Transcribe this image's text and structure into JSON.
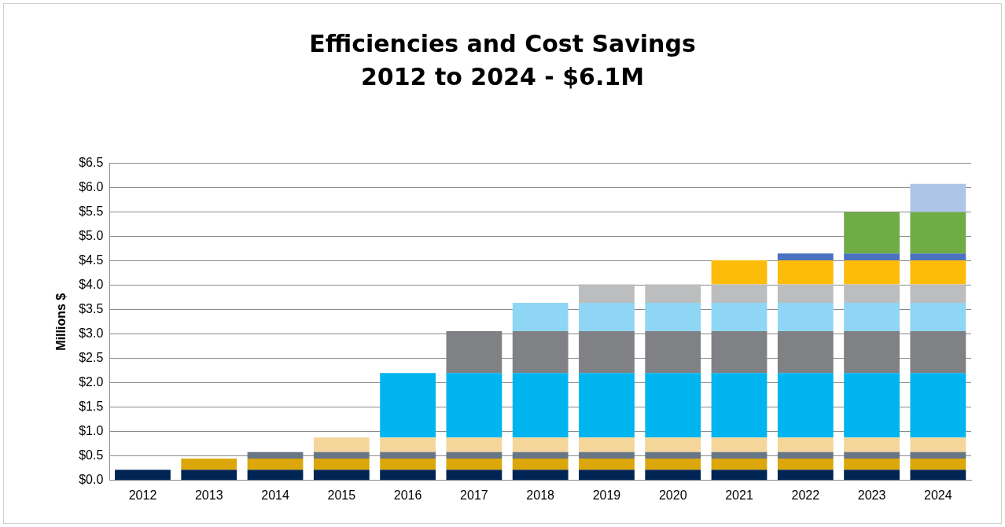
{
  "chart_data": {
    "type": "bar",
    "title": "Efficiencies and Cost Savings\n2012 to 2024 - $6.1M",
    "ylabel": "Millions $",
    "stacked": true,
    "grid": "y",
    "legend": false,
    "categories": [
      "2012",
      "2013",
      "2014",
      "2015",
      "2016",
      "2017",
      "2018",
      "2019",
      "2020",
      "2021",
      "2022",
      "2023",
      "2024"
    ],
    "ylim": [
      0,
      6.5
    ],
    "yticks": [
      {
        "value": 0,
        "label": "$0.0"
      },
      {
        "value": 0.5,
        "label": "$0.5"
      },
      {
        "value": 1,
        "label": "$1.0"
      },
      {
        "value": 1.5,
        "label": "$1.5"
      },
      {
        "value": 2,
        "label": "$2.0"
      },
      {
        "value": 2.5,
        "label": "$2.5"
      },
      {
        "value": 3,
        "label": "$3.0"
      },
      {
        "value": 3.5,
        "label": "$3.5"
      },
      {
        "value": 4,
        "label": "$4.0"
      },
      {
        "value": 4.5,
        "label": "$4.5"
      },
      {
        "value": 5,
        "label": "$5.0"
      },
      {
        "value": 5.5,
        "label": "$5.5"
      },
      {
        "value": 6,
        "label": "$6.0"
      },
      {
        "value": 6.5,
        "label": "$6.5"
      }
    ],
    "series": [
      {
        "color": "#002554",
        "values": [
          0.22,
          0.22,
          0.22,
          0.22,
          0.22,
          0.22,
          0.22,
          0.22,
          0.22,
          0.22,
          0.22,
          0.22,
          0.22
        ]
      },
      {
        "color": "#dba70b",
        "values": [
          null,
          0.23,
          0.23,
          0.23,
          0.23,
          0.23,
          0.23,
          0.23,
          0.23,
          0.23,
          0.23,
          0.23,
          0.23
        ]
      },
      {
        "color": "#687686",
        "values": [
          null,
          null,
          0.13,
          0.13,
          0.13,
          0.13,
          0.13,
          0.13,
          0.13,
          0.13,
          0.13,
          0.13,
          0.13
        ]
      },
      {
        "color": "#f5d69a",
        "values": [
          null,
          null,
          null,
          0.3,
          0.3,
          0.3,
          0.3,
          0.3,
          0.3,
          0.3,
          0.3,
          0.3,
          0.3
        ]
      },
      {
        "color": "#00b5ef",
        "values": [
          null,
          null,
          null,
          null,
          1.32,
          1.32,
          1.32,
          1.32,
          1.32,
          1.32,
          1.32,
          1.32,
          1.32
        ]
      },
      {
        "color": "#808184",
        "values": [
          null,
          null,
          null,
          null,
          null,
          0.86,
          0.86,
          0.86,
          0.86,
          0.86,
          0.86,
          0.86,
          0.86
        ]
      },
      {
        "color": "#8fd6f5",
        "values": [
          null,
          null,
          null,
          null,
          null,
          null,
          0.58,
          0.58,
          0.58,
          0.58,
          0.58,
          0.58,
          0.58
        ]
      },
      {
        "color": "#bbbdbf",
        "values": [
          null,
          null,
          null,
          null,
          null,
          null,
          null,
          0.38,
          0.38,
          0.38,
          0.38,
          0.38,
          0.38
        ]
      },
      {
        "color": "#fdbb0a",
        "values": [
          null,
          null,
          null,
          null,
          null,
          null,
          null,
          null,
          null,
          0.49,
          0.49,
          0.49,
          0.49
        ]
      },
      {
        "color": "#4a72bf",
        "values": [
          null,
          null,
          null,
          null,
          null,
          null,
          null,
          null,
          null,
          null,
          0.14,
          0.14,
          0.14
        ]
      },
      {
        "color": "#70ac46",
        "values": [
          null,
          null,
          null,
          null,
          null,
          null,
          null,
          null,
          null,
          null,
          null,
          0.85,
          0.85
        ]
      },
      {
        "color": "#adc5e7",
        "values": [
          null,
          null,
          null,
          null,
          null,
          null,
          null,
          null,
          null,
          null,
          null,
          null,
          0.58
        ]
      }
    ]
  }
}
